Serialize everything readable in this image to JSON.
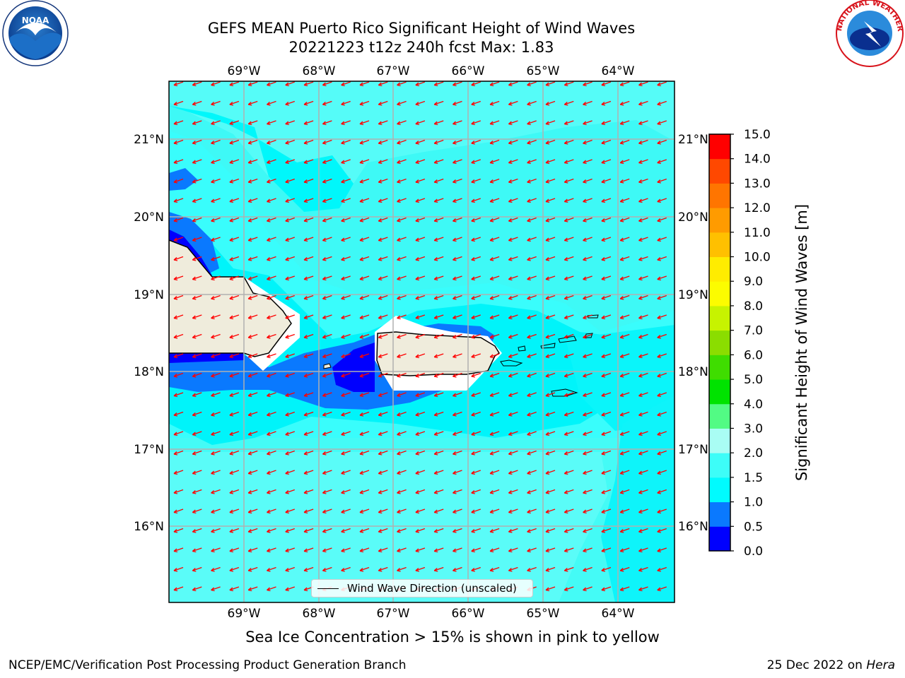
{
  "title": {
    "line1": "GEFS MEAN Puerto Rico Significant Height of Wind Waves",
    "line2": "20221223 t12z 240h fcst   Max: 1.83"
  },
  "map": {
    "lon_labels": [
      "69°W",
      "68°W",
      "67°W",
      "66°W",
      "65°W",
      "64°W"
    ],
    "lat_labels": [
      "21°N",
      "20°N",
      "19°N",
      "18°N",
      "17°N",
      "16°N"
    ],
    "legend_label": "Wind Wave Direction (unscaled)",
    "arrow_color": "#ff0000",
    "land_color": "#efecdc",
    "ocean_base_color": "#39fdfc"
  },
  "colorbar": {
    "label": "Significant Height of Wind Waves [m]",
    "ticks": [
      "0.0",
      "0.5",
      "1.0",
      "1.5",
      "2.0",
      "3.0",
      "4.0",
      "5.0",
      "6.0",
      "7.0",
      "8.0",
      "9.0",
      "10.0",
      "11.0",
      "12.0",
      "13.0",
      "14.0",
      "15.0"
    ],
    "colors": [
      "#0000fe",
      "#0a79fe",
      "#00fbfe",
      "#3dfdf8",
      "#a9fdf4",
      "#52fb84",
      "#00e300",
      "#3fdd00",
      "#8bdd00",
      "#c7f300",
      "#fcfc00",
      "#ffec00",
      "#ffc000",
      "#ff9b00",
      "#ff7500",
      "#ff4800",
      "#ff0000"
    ]
  },
  "seaice_note": "Sea Ice Concentration > 15% is shown in pink to yellow",
  "footer": {
    "left": "NCEP/EMC/Verification Post Processing Product Generation Branch",
    "right_date": "25 Dec 2022 on ",
    "right_host": "Hera"
  },
  "logos": {
    "noaa": "NOAA",
    "nws": "NATIONAL WEATHER SERVICE"
  }
}
